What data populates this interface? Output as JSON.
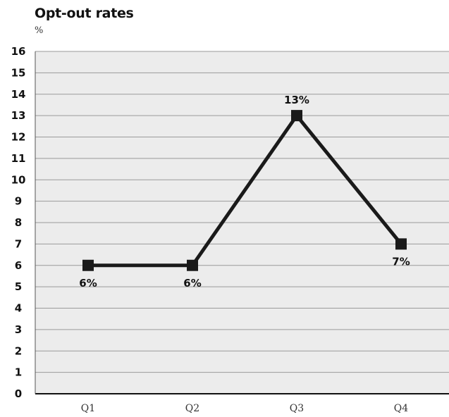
{
  "chart_data": {
    "type": "line",
    "title": "Opt-out rates",
    "ylabel": "%",
    "xlabel": "",
    "categories": [
      "Q1",
      "Q2",
      "Q3",
      "Q4"
    ],
    "series": [
      {
        "values": [
          6,
          6,
          13,
          7
        ]
      }
    ],
    "data_labels": [
      "6%",
      "6%",
      "13%",
      "7%"
    ],
    "yticks": [
      0,
      1,
      2,
      3,
      4,
      5,
      6,
      7,
      8,
      9,
      10,
      11,
      12,
      13,
      14,
      15,
      16
    ],
    "ylim": [
      0,
      16
    ],
    "grid": true,
    "colors": {
      "background": "#ececec",
      "gridline": "#9a9a9a",
      "line": "#1a1a1a",
      "marker": "#1a1a1a"
    }
  }
}
